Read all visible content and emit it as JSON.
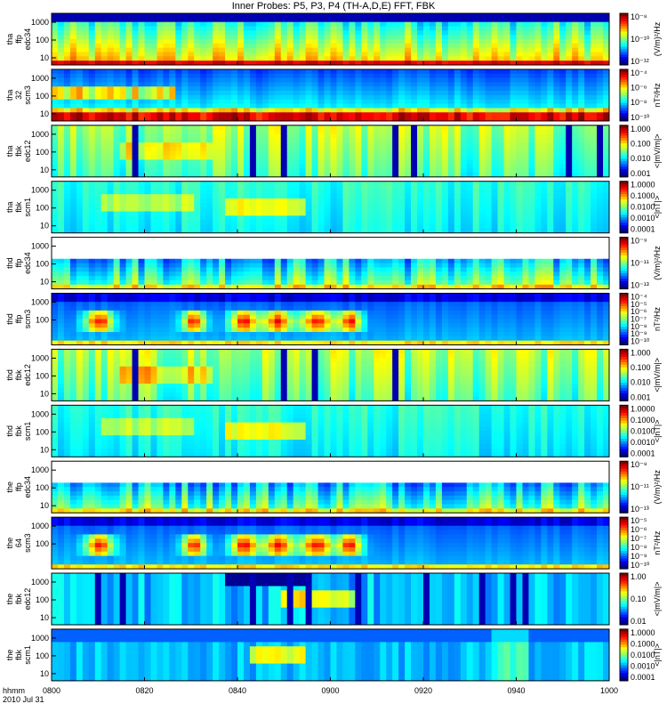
{
  "title": "Inner Probes: P5, P3, P4  (TH-A,D,E)  FFT, FBK",
  "footer": {
    "time_label": "hhmm",
    "date_label": "2010 Jul 31"
  },
  "chart_data": {
    "type": "heatmap",
    "x_ticks": [
      "0800",
      "0820",
      "0840",
      "0900",
      "0920",
      "0940",
      "1000"
    ],
    "panels": [
      {
        "ylabel": [
          "tha",
          "ffp",
          "edc34"
        ],
        "y_ticks": [
          "1000",
          "100",
          "10"
        ],
        "colorbar_ticks": [
          "10⁻⁸",
          "10⁻¹⁰",
          "10⁻¹²"
        ],
        "colorbar_label": "(V/m)²/Hz",
        "style": "ffp_edc"
      },
      {
        "ylabel": [
          "tha",
          "32",
          "scm3"
        ],
        "y_ticks": [
          "1000",
          "100",
          "10"
        ],
        "colorbar_ticks": [
          "10⁻⁴",
          "10⁻⁶",
          "10⁻⁸",
          "10⁻¹⁰"
        ],
        "colorbar_label": "nT²/Hz",
        "style": "scm_low"
      },
      {
        "ylabel": [
          "tha",
          "fbk",
          "edc12"
        ],
        "y_ticks": [
          "1000",
          "100",
          "10"
        ],
        "colorbar_ticks": [
          "1.000",
          "0.100",
          "0.010",
          "0.001"
        ],
        "colorbar_label": "<|mV/m|>",
        "style": "fbk_e"
      },
      {
        "ylabel": [
          "tha",
          "fbk",
          "scm1"
        ],
        "y_ticks": [
          "1000",
          "100",
          "10"
        ],
        "colorbar_ticks": [
          "1.0000",
          "0.1000",
          "0.0100",
          "0.0010",
          "0.0001"
        ],
        "colorbar_label": "<|nT|>",
        "style": "fbk_b"
      },
      {
        "ylabel": [
          "thd",
          "ffp",
          "edc34"
        ],
        "y_ticks": [
          "1000",
          "100",
          "10"
        ],
        "colorbar_ticks": [
          "10⁻⁹",
          "10⁻¹¹",
          "10⁻¹³"
        ],
        "colorbar_label": "(V/m)²/Hz",
        "style": "ffp_sparse"
      },
      {
        "ylabel": [
          "thd",
          "ffp",
          "scm3"
        ],
        "y_ticks": [
          "1000",
          "100"
        ],
        "colorbar_ticks": [
          "10⁻⁴",
          "10⁻⁵",
          "10⁻⁶",
          "10⁻⁷",
          "10⁻⁸",
          "10⁻⁹",
          "10⁻¹⁰"
        ],
        "colorbar_label": "nT²/Hz",
        "style": "scm_blobs"
      },
      {
        "ylabel": [
          "thd",
          "fbk",
          "edc12"
        ],
        "y_ticks": [
          "1000",
          "100",
          "10"
        ],
        "colorbar_ticks": [
          "1.000",
          "0.100",
          "0.010",
          "0.001"
        ],
        "colorbar_label": "<|mV/m|>",
        "style": "fbk_e"
      },
      {
        "ylabel": [
          "thd",
          "fbk",
          "scm1"
        ],
        "y_ticks": [
          "1000",
          "100",
          "10"
        ],
        "colorbar_ticks": [
          "1.0000",
          "0.1000",
          "0.0100",
          "0.0010",
          "0.0001"
        ],
        "colorbar_label": "<|nT|>",
        "style": "fbk_b"
      },
      {
        "ylabel": [
          "the",
          "ffp",
          "edc34"
        ],
        "y_ticks": [
          "1000",
          "100",
          "10"
        ],
        "colorbar_ticks": [
          "10⁻⁹",
          "10⁻¹¹",
          "10⁻¹³"
        ],
        "colorbar_label": "(V/m)²/Hz",
        "style": "ffp_sparse"
      },
      {
        "ylabel": [
          "the",
          "64",
          "scm3"
        ],
        "y_ticks": [
          "1000",
          "100"
        ],
        "colorbar_ticks": [
          "10⁻⁵",
          "10⁻⁶",
          "10⁻⁷",
          "10⁻⁸",
          "10⁻⁹",
          "10⁻¹⁰"
        ],
        "colorbar_label": "nT²/Hz",
        "style": "scm_blobs"
      },
      {
        "ylabel": [
          "the",
          "fbk",
          "edc12"
        ],
        "y_ticks": [
          "1000",
          "100",
          "10"
        ],
        "colorbar_ticks": [
          "1.00",
          "0.10",
          "0.01"
        ],
        "colorbar_label": "<|mV/m|>",
        "style": "fbk_e2"
      },
      {
        "ylabel": [
          "the",
          "fbk",
          "scm1"
        ],
        "y_ticks": [
          "1000",
          "100",
          "10"
        ],
        "colorbar_ticks": [
          "1.0000",
          "0.1000",
          "0.0100",
          "0.0010",
          "0.0001"
        ],
        "colorbar_label": "<|nT|>",
        "style": "fbk_b2"
      }
    ]
  }
}
